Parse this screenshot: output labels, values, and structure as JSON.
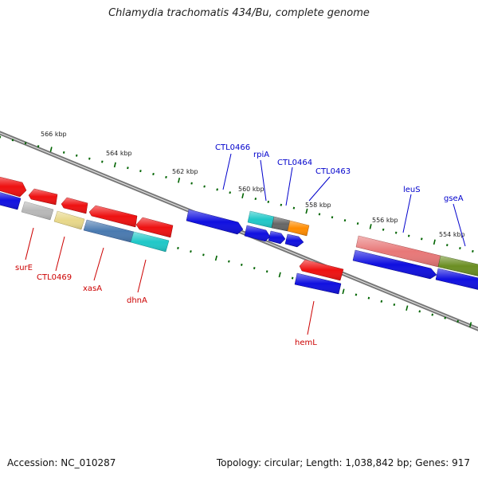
{
  "title": "Chlamydia trachomatis 434/Bu, complete genome",
  "footer": {
    "accession": "Accession: NC_010287",
    "summary": "Topology: circular; Length: 1,038,842 bp; Genes: 917"
  },
  "colors": {
    "forward_label": "#0000cc",
    "reverse_label": "#cc0000",
    "tick": "#006400",
    "backbone": "#777777"
  },
  "ticks": [
    {
      "label": "566 kbp"
    },
    {
      "label": "564 kbp"
    },
    {
      "label": "562 kbp"
    },
    {
      "label": "560 kbp"
    },
    {
      "label": "558 kbp"
    },
    {
      "label": "556 kbp"
    },
    {
      "label": "554 kbp"
    }
  ],
  "genes_forward": [
    {
      "label": "CTL0466",
      "color": "#1010e0"
    },
    {
      "label": "rpiA",
      "color": "#1010e0"
    },
    {
      "label": "CTL0464",
      "color": "#1010e0"
    },
    {
      "label": "CTL0463",
      "color": "#1010e0"
    },
    {
      "label": "leuS",
      "color": "#1010e0"
    },
    {
      "label": "gseA",
      "color": "#1010e0"
    }
  ],
  "genes_reverse": [
    {
      "label": "surE",
      "color": "#ee1111"
    },
    {
      "label": "CTL0469",
      "color": "#ee1111"
    },
    {
      "label": "xasA",
      "color": "#ee1111"
    },
    {
      "label": "dhnA",
      "color": "#ee1111"
    },
    {
      "label": "hemL",
      "color": "#ee1111"
    }
  ],
  "feature_colors": {
    "gray": "#b8b8b8",
    "khaki": "#e8d88a",
    "steelblue": "#4a7ab0",
    "cyan": "#20c8c8",
    "darkgray": "#666666",
    "orange": "#ff8c00",
    "salmon": "#e87878",
    "olive": "#6b8e23"
  }
}
